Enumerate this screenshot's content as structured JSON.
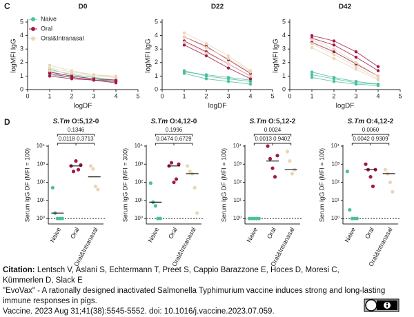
{
  "panels": [
    "C",
    "D"
  ],
  "chart_data": [
    {
      "type": "line",
      "title": "D0",
      "xlabel": "logDF",
      "ylabel": "logMFI IgG",
      "x": [
        1,
        2,
        3,
        4
      ],
      "xlim": [
        0,
        5
      ],
      "ylim": [
        0,
        5
      ],
      "xticks": [
        0,
        1,
        2,
        3,
        4,
        5
      ],
      "yticks": [
        0,
        1,
        2,
        3,
        4,
        5
      ],
      "legend": "upper left",
      "series": [
        {
          "name": "Naive",
          "color": "#4cbfa0",
          "values": [
            [
              1.5,
              1.1,
              0.9,
              0.7
            ],
            [
              1.3,
              1.0,
              0.8,
              0.6
            ],
            [
              1.1,
              0.9,
              0.7,
              0.6
            ]
          ]
        },
        {
          "name": "Oral",
          "color": "#a3194a",
          "values": [
            [
              1.2,
              0.9,
              0.7,
              0.6
            ],
            [
              1.0,
              0.8,
              0.7,
              0.5
            ],
            [
              1.3,
              1.0,
              0.8,
              0.7
            ]
          ]
        },
        {
          "name": "Oral&Intranasal",
          "color": "#e8d6b4",
          "values": [
            [
              1.6,
              1.3,
              1.1,
              0.9
            ],
            [
              1.4,
              1.2,
              1.0,
              0.9
            ],
            [
              1.8,
              1.4,
              1.1,
              1.0
            ]
          ]
        }
      ]
    },
    {
      "type": "line",
      "title": "D22",
      "xlabel": "logDF",
      "ylabel": "logMFI IgG",
      "x": [
        1,
        2,
        3,
        4
      ],
      "xlim": [
        0,
        5
      ],
      "ylim": [
        0,
        5
      ],
      "xticks": [
        0,
        1,
        2,
        3,
        4,
        5
      ],
      "yticks": [
        0,
        1,
        2,
        3,
        4,
        5
      ],
      "series": [
        {
          "color": "#4cbfa0",
          "values": [
            [
              1.4,
              1.0,
              0.8,
              0.6
            ],
            [
              1.3,
              1.1,
              0.9,
              0.7
            ],
            [
              1.2,
              0.8,
              0.6,
              0.4
            ]
          ]
        },
        {
          "color": "#a3194a",
          "values": [
            [
              3.9,
              3.2,
              2.2,
              1.2
            ],
            [
              3.6,
              2.8,
              1.9,
              1.0
            ],
            [
              3.3,
              2.5,
              1.6,
              0.8
            ]
          ]
        },
        {
          "color": "#e8d6b4",
          "values": [
            [
              4.2,
              3.4,
              2.5,
              1.4
            ],
            [
              3.9,
              3.1,
              2.3,
              1.3
            ],
            [
              3.5,
              2.7,
              1.9,
              1.0
            ]
          ]
        }
      ]
    },
    {
      "type": "line",
      "title": "D42",
      "xlabel": "logDF",
      "ylabel": "logMFI IgG",
      "x": [
        1,
        2,
        3,
        4
      ],
      "xlim": [
        0,
        5
      ],
      "ylim": [
        0,
        5
      ],
      "xticks": [
        0,
        1,
        2,
        3,
        4,
        5
      ],
      "yticks": [
        0,
        1,
        2,
        3,
        4,
        5
      ],
      "series": [
        {
          "color": "#4cbfa0",
          "values": [
            [
              1.3,
              0.9,
              0.6,
              0.4
            ],
            [
              1.1,
              0.8,
              0.5,
              0.4
            ],
            [
              0.9,
              0.6,
              0.4,
              0.3
            ]
          ]
        },
        {
          "color": "#a3194a",
          "values": [
            [
              4.0,
              3.6,
              2.8,
              1.7
            ],
            [
              3.8,
              3.3,
              2.4,
              1.4
            ],
            [
              3.5,
              2.8,
              1.9,
              1.0
            ]
          ]
        },
        {
          "color": "#e8d6b4",
          "values": [
            [
              3.7,
              3.0,
              2.0,
              1.0
            ],
            [
              3.4,
              2.6,
              1.7,
              0.8
            ],
            [
              3.1,
              2.3,
              1.5,
              0.7
            ]
          ]
        }
      ]
    },
    {
      "type": "strip",
      "organism": "S.Tm",
      "title": "O:5,12-0",
      "ylabel": "Serum IgG DF (MFI = 100)",
      "categories": [
        "Naive",
        "Oral",
        "Oral&Intranasal"
      ],
      "colors": [
        "#4cbfa0",
        "#a3194a",
        "#e8d6b4"
      ],
      "log_y": true,
      "ylim": [
        0.5,
        10000
      ],
      "yticks": [
        {
          "value": 1,
          "label": "10⁰"
        },
        {
          "value": 10,
          "label": "10¹"
        },
        {
          "value": 100,
          "label": "10²"
        },
        {
          "value": 1000,
          "label": "10³"
        },
        {
          "value": 10000,
          "label": "10⁴"
        }
      ],
      "hline": 1,
      "values": [
        [
          50,
          2,
          1,
          1,
          1
        ],
        [
          800,
          400,
          1500,
          500,
          900
        ],
        [
          800,
          550,
          60,
          40
        ]
      ],
      "means": [
        2,
        800,
        200
      ],
      "comparisons": [
        {
          "groups": [
            0,
            2
          ],
          "p": 0.1346
        },
        {
          "groups": [
            0,
            1
          ],
          "p": 0.0118
        },
        {
          "groups": [
            1,
            2
          ],
          "p": 0.3713
        }
      ]
    },
    {
      "type": "strip",
      "organism": "S.Tm",
      "title": "O:4,12-0",
      "ylabel": "Serum IgG DF (MFI = 300)",
      "categories": [
        "Naive",
        "Oral",
        "Oral&Intranasal"
      ],
      "colors": [
        "#4cbfa0",
        "#a3194a",
        "#e8d6b4"
      ],
      "log_y": true,
      "ylim": [
        0.5,
        10000
      ],
      "yticks": [
        {
          "value": 1,
          "label": "10⁰"
        },
        {
          "value": 10,
          "label": "10¹"
        },
        {
          "value": 100,
          "label": "10²"
        },
        {
          "value": 1000,
          "label": "10³"
        },
        {
          "value": 10000,
          "label": "10⁴"
        }
      ],
      "hline": 1,
      "values": [
        [
          90,
          8,
          5,
          1,
          1
        ],
        [
          800,
          1200,
          100,
          150,
          1000
        ],
        [
          800,
          400,
          300,
          50,
          2
        ]
      ],
      "means": [
        8,
        800,
        300
      ],
      "comparisons": [
        {
          "groups": [
            0,
            2
          ],
          "p": 0.1996
        },
        {
          "groups": [
            0,
            1
          ],
          "p": 0.0474
        },
        {
          "groups": [
            1,
            2
          ],
          "p": 0.6729
        }
      ]
    },
    {
      "type": "strip",
      "organism": "S.Tm",
      "title": "O:5,12-2",
      "ylabel": "Serum IgG DF (MFI = 100)",
      "categories": [
        "Naive",
        "Oral",
        "Oral&Intranasal"
      ],
      "colors": [
        "#4cbfa0",
        "#a3194a",
        "#e8d6b4"
      ],
      "log_y": true,
      "ylim": [
        0.5,
        10000
      ],
      "yticks": [
        {
          "value": 1,
          "label": "10⁰"
        },
        {
          "value": 10,
          "label": "10¹"
        },
        {
          "value": 100,
          "label": "10²"
        },
        {
          "value": 1000,
          "label": "10³"
        },
        {
          "value": 10000,
          "label": "10⁴"
        }
      ],
      "hline": 1,
      "values": [
        [
          1,
          1,
          1,
          1,
          1
        ],
        [
          10000,
          2000,
          600,
          200,
          3000
        ],
        [
          5000,
          1500,
          300,
          500
        ]
      ],
      "means": [
        null,
        1500,
        500
      ],
      "comparisons": [
        {
          "groups": [
            0,
            2
          ],
          "p": 0.0024
        },
        {
          "groups": [
            0,
            1
          ],
          "p": 0.0013
        },
        {
          "groups": [
            1,
            2
          ],
          "p": 0.9402
        }
      ]
    },
    {
      "type": "strip",
      "organism": "S.Tm",
      "title": "O:4,12-2",
      "ylabel": "Serum IgG DF (MFI = 100)",
      "categories": [
        "Naive",
        "Oral",
        "Oral&Intranasal"
      ],
      "colors": [
        "#4cbfa0",
        "#a3194a",
        "#e8d6b4"
      ],
      "log_y": true,
      "ylim": [
        0.5,
        10000
      ],
      "yticks": [
        {
          "value": 1,
          "label": "10⁰"
        },
        {
          "value": 10,
          "label": "10¹"
        },
        {
          "value": 100,
          "label": "10²"
        },
        {
          "value": 1000,
          "label": "10³"
        },
        {
          "value": 10000,
          "label": "10⁴"
        }
      ],
      "hline": 1,
      "values": [
        [
          400,
          3,
          1,
          1,
          1
        ],
        [
          1000,
          500,
          200,
          60,
          500
        ],
        [
          500,
          300,
          100,
          30
        ]
      ],
      "means": [
        null,
        500,
        300
      ],
      "comparisons": [
        {
          "groups": [
            0,
            2
          ],
          "p": {
            "value": 0.006,
            "label": "0.0060"
          }
        },
        {
          "groups": [
            0,
            1
          ],
          "p": 0.0042
        },
        {
          "groups": [
            1,
            2
          ],
          "p": 0.9309
        }
      ]
    }
  ],
  "citation": {
    "label": "Citation:",
    "lines": [
      " Lentsch V, Aslani S, Echtermann T, Preet S, Cappio Barazzone E, Hoces D, Moresi C,",
      "Kümmerlen D, Slack E",
      " \"EvoVax\" - A rationally designed inactivated Salmonella Typhimurium vaccine induces strong and long-lasting",
      "immune responses in pigs.",
      "Vaccine. 2023 Aug 31;41(38):5545-5552. doi: 10.1016/j.vaccine.2023.07.059."
    ]
  }
}
